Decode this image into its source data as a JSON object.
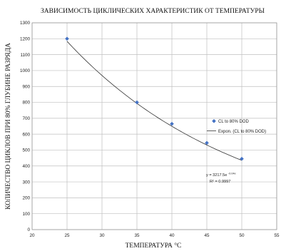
{
  "chart_data": {
    "type": "scatter",
    "title": "ЗАВИСИМОСТЬ ЦИКЛИЧЕСКИХ ХАРАКТЕРИСТИК ОТ ТЕМПЕРАТУРЫ",
    "xlabel": "ТЕМПЕРАТУРА °С",
    "ylabel": "КОЛИЧЕСТВО ЦИКЛОВ ПРИ 80% ГЛУБИНЕ РАЗРЯДА",
    "xlim": [
      20,
      55
    ],
    "ylim": [
      0,
      1300
    ],
    "x_ticks": [
      "20",
      "25",
      "30",
      "35",
      "40",
      "45",
      "50",
      "55"
    ],
    "y_ticks": [
      "0",
      "100",
      "200",
      "300",
      "400",
      "500",
      "600",
      "700",
      "800",
      "900",
      "1000",
      "1100",
      "1200",
      "1300"
    ],
    "grid": true,
    "legend_position": "right",
    "series": [
      {
        "name": "CL to 80% DOD",
        "color": "#4472c4",
        "marker": "diamond",
        "x": [
          25,
          35,
          40,
          45,
          50
        ],
        "y": [
          1200,
          800,
          665,
          545,
          445
        ]
      }
    ],
    "trendline": {
      "name": "Expon. (CL to 80% DOD)",
      "type": "exponential",
      "a": 3217.5,
      "b": -0.04,
      "x_range": [
        25,
        50
      ],
      "color": "#333333"
    },
    "annotation": {
      "equation_main": "y = 3217.5e",
      "equation_exp": "-0.04x",
      "r_squared": "R² = 0.9997"
    }
  }
}
